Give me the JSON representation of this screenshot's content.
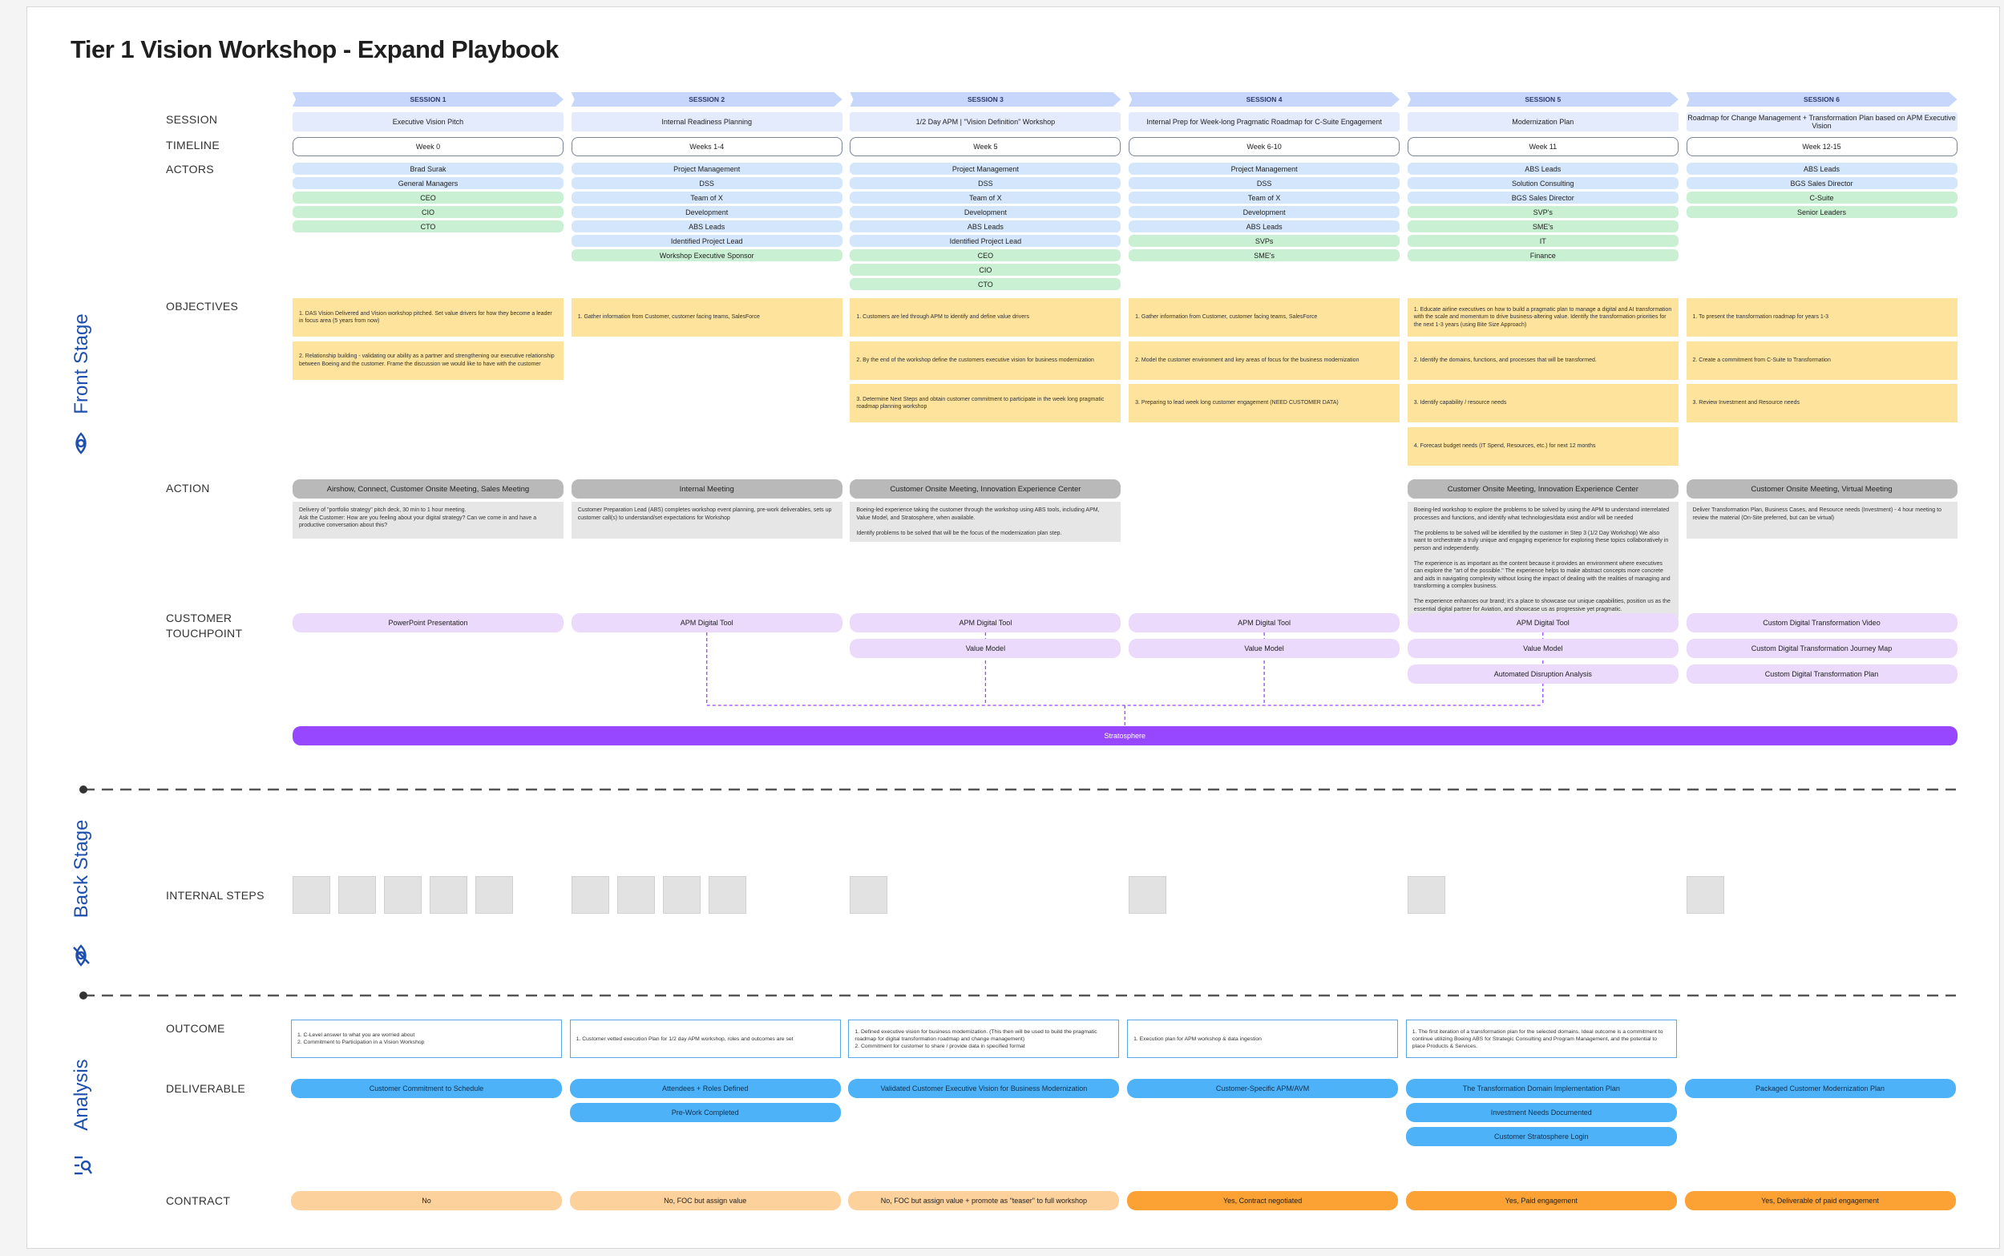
{
  "header": {
    "title": "Tier 1 Vision Workshop - Expand Playbook"
  },
  "stages": [
    "Front Stage",
    "Back Stage",
    "Analysis"
  ],
  "row_labels": {
    "session": "SESSION",
    "timeline": "TIMELINE",
    "actors": "ACTORS",
    "objectives": "OBJECTIVES",
    "action": "ACTION",
    "touchpoint": "CUSTOMER TOUCHPOINT",
    "internal_steps": "INTERNAL STEPS",
    "outcome": "OUTCOME",
    "deliverable": "DELIVERABLE",
    "contract": "CONTRACT"
  },
  "platform": "Stratosphere",
  "sessions": [
    {
      "header": "SESSION 1",
      "name": "Executive Vision Pitch",
      "timeline": "Week 0",
      "actors": [
        {
          "text": "Brad Surak",
          "color": "#d3e6fb"
        },
        {
          "text": "General Managers",
          "color": "#d3e6fb"
        },
        {
          "text": "CEO",
          "color": "#c9f0d3"
        },
        {
          "text": "CIO",
          "color": "#c9f0d3"
        },
        {
          "text": "CTO",
          "color": "#c9f0d3"
        }
      ],
      "objectives": [
        "1. DAS Vision Delivered and Vision workshop pitched.  Set value drivers for how they become a leader in focus area (5 years from now)",
        "2. Relationship building - validating our ability as a partner and strengthening our executive relationship between Boeing and the customer. Frame the discussion we would like to have with the customer"
      ],
      "action": {
        "title": "Airshow, Connect, Customer Onsite Meeting, Sales Meeting",
        "text": "Delivery of \"portfolio strategy\" pitch deck, 30 min to 1 hour meeting.\nAsk the Customer: How are you feeling about your digital strategy? Can we come in and have a productive conversation about this?"
      },
      "touchpoints": [
        "PowerPoint Presentation"
      ],
      "outcome": "1. C-Level answer to what you are worried about\n2. Commitment to Participation in a Vision Workshop",
      "deliverables": [
        "Customer Commitment to Schedule"
      ],
      "contract": {
        "text": "No",
        "color": "#fdd19b"
      }
    },
    {
      "header": "SESSION 2",
      "name": "Internal Readiness Planning",
      "timeline": "Weeks 1-4",
      "actors": [
        {
          "text": "Project Management",
          "color": "#d3e6fb"
        },
        {
          "text": "DSS",
          "color": "#d3e6fb"
        },
        {
          "text": "Team of X",
          "color": "#d3e6fb"
        },
        {
          "text": "Development",
          "color": "#d3e6fb"
        },
        {
          "text": "ABS Leads",
          "color": "#d3e6fb"
        },
        {
          "text": "Identified Project Lead",
          "color": "#d3e6fb"
        },
        {
          "text": "Workshop Executive Sponsor",
          "color": "#c9f0d3"
        }
      ],
      "objectives": [
        "1. Gather information from Customer, customer facing teams, SalesForce"
      ],
      "action": {
        "title": "Internal Meeting",
        "text": "Customer Preparation Lead (ABS) completes workshop event planning, pre-work deliverables, sets up customer call(s) to understand/set expectations for Workshop"
      },
      "touchpoints": [
        "APM Digital Tool"
      ],
      "outcome": "1. Customer vetted execution Plan for 1/2 day APM workshop, roles and outcomes are set",
      "deliverables": [
        "Attendees + Roles Defined",
        "Pre-Work Completed"
      ],
      "contract": {
        "text": "No, FOC but assign value",
        "color": "#fdd19b"
      }
    },
    {
      "header": "SESSION 3",
      "name": "1/2 Day APM | \"Vision Definition\" Workshop",
      "timeline": "Week 5",
      "actors": [
        {
          "text": "Project Management",
          "color": "#d3e6fb"
        },
        {
          "text": "DSS",
          "color": "#d3e6fb"
        },
        {
          "text": "Team of X",
          "color": "#d3e6fb"
        },
        {
          "text": "Development",
          "color": "#d3e6fb"
        },
        {
          "text": "ABS Leads",
          "color": "#d3e6fb"
        },
        {
          "text": "Identified Project Lead",
          "color": "#d3e6fb"
        },
        {
          "text": "CEO",
          "color": "#c9f0d3"
        },
        {
          "text": "CIO",
          "color": "#c9f0d3"
        },
        {
          "text": "CTO",
          "color": "#c9f0d3"
        }
      ],
      "objectives": [
        "1. Customers are led through APM to identify and define value drivers",
        "2. By the end of the workshop define the customers executive vision for business modernization",
        "3. Determine Next Steps and obtain customer commitment to participate in the week long pragmatic roadmap planning workshop"
      ],
      "action": {
        "title": "Customer Onsite Meeting,  Innovation Experience Center",
        "text": "Boeing-led experience taking the customer through the workshop using ABS tools, including APM, Value Model, and Stratosphere, when available.\n\nIdentify problems to be solved that will be the focus of the modernization plan step."
      },
      "touchpoints": [
        "APM Digital Tool",
        "Value Model"
      ],
      "outcome": "1. Defined executive vision for business modernization. (This then will be used to build the pragmatic roadmap for digital transformation roadmap and change management)\n2. Commitment for customer to share / provide data in specified format",
      "deliverables": [
        "Validated Customer Executive Vision for Business Modernization"
      ],
      "contract": {
        "text": "No, FOC but assign value + promote as \"teaser\" to full workshop",
        "color": "#fdd19b"
      }
    },
    {
      "header": "SESSION 4",
      "name": "Internal Prep for Week-long Pragmatic Roadmap for C-Suite Engagement",
      "timeline": "Week 6-10",
      "actors": [
        {
          "text": "Project Management",
          "color": "#d3e6fb"
        },
        {
          "text": "DSS",
          "color": "#d3e6fb"
        },
        {
          "text": "Team of X",
          "color": "#d3e6fb"
        },
        {
          "text": "Development",
          "color": "#d3e6fb"
        },
        {
          "text": "ABS Leads",
          "color": "#d3e6fb"
        },
        {
          "text": "SVPs",
          "color": "#c9f0d3"
        },
        {
          "text": "SME's",
          "color": "#c9f0d3"
        }
      ],
      "objectives": [
        "1. Gather information from Customer, customer facing teams, SalesForce",
        "2. Model the customer environment and key areas of focus for the business modernization",
        "3. Preparing to lead week long customer engagement (NEED CUSTOMER DATA)"
      ],
      "touchpoints": [
        "APM Digital Tool",
        "Value Model"
      ],
      "outcome": "1. Execution plan for APM workshop & data ingestion",
      "deliverables": [
        "Customer-Specific APM/AVM"
      ],
      "contract": {
        "text": "Yes, Contract negotiated",
        "color": "#fca133"
      }
    },
    {
      "header": "SESSION 5",
      "name": "Modernization Plan",
      "timeline": "Week 11",
      "actors": [
        {
          "text": "ABS Leads",
          "color": "#d3e6fb"
        },
        {
          "text": "Solution Consulting",
          "color": "#d3e6fb"
        },
        {
          "text": "BGS Sales Director",
          "color": "#d3e6fb"
        },
        {
          "text": "SVP's",
          "color": "#c9f0d3"
        },
        {
          "text": "SME's",
          "color": "#c9f0d3"
        },
        {
          "text": "IT",
          "color": "#c9f0d3"
        },
        {
          "text": "Finance",
          "color": "#c9f0d3"
        }
      ],
      "objectives": [
        "1. Educate airline executives on how to build a pragmatic plan to manage a digital and AI transformation with the scale and momentum to drive business-altering value. Identify the transformation priorities for the next 1-3 years (using Bite Size Approach)",
        "2. Identify the domains, functions, and processes that will be transformed.",
        "3. Identify capability / resource needs",
        "4. Forecast budget needs (IT Spend, Resources, etc.) for next 12 months"
      ],
      "action": {
        "title": "Customer Onsite Meeting, Innovation Experience Center",
        "text": "Boeing-led workshop to explore the problems to be solved by using the APM to understand interrelated processes and functions, and identify what technologies/data exist and/or will be needed\n\nThe problems to be solved will be identified by the customer in Step 3 (1/2 Day Workshop) We also want to orchestrate a truly unique and engaging experience for exploring these topics collaboratively in person and independently.\n\nThe experience is as important as the content because it provides an environment where executives can explore the \"art of the possible.\" The experience helps to make abstract concepts more concrete and aids in navigating complexity without losing the impact of dealing with the realities of managing and transforming a complex business.\n\nThe experience enhances our brand; it's a place to showcase our unique capabilities, position us as the essential digital partner for Aviation, and showcase us as progressive yet pragmatic."
      },
      "touchpoints": [
        "APM Digital Tool",
        "Value Model",
        "Automated Disruption Analysis"
      ],
      "outcome": "1. The first iteration of a transformation plan for the selected domains. Ideal outcome is a commitment to continue utilizing Boeing ABS for Strategic Consulting and Program Management, and the potential to place Products & Services.",
      "deliverables": [
        "The Transformation Domain Implementation Plan",
        "Investment Needs Documented",
        "Customer Stratosphere Login"
      ],
      "contract": {
        "text": "Yes, Paid engagement",
        "color": "#fca133"
      }
    },
    {
      "header": "SESSION 6",
      "name": "Roadmap for Change Management + Transformation Plan based on APM Executive Vision",
      "timeline": "Week 12-15",
      "actors": [
        {
          "text": "ABS Leads",
          "color": "#d3e6fb"
        },
        {
          "text": "BGS Sales Director",
          "color": "#d3e6fb"
        },
        {
          "text": "C-Suite",
          "color": "#c9f0d3"
        },
        {
          "text": "Senior Leaders",
          "color": "#c9f0d3"
        }
      ],
      "objectives": [
        "1. To present the transformation roadmap for years 1-3",
        "2. Create a commitment from C-Suite to Transformation",
        "3. Review Investment and Resource needs"
      ],
      "action": {
        "title": "Customer Onsite Meeting, Virtual Meeting",
        "text": "Deliver Transformation Plan, Business Cases, and Resource needs (Investment) - 4 hour meeting to review the material (On-Site preferred, but can be virtual)"
      },
      "touchpoints": [
        "Custom Digital Transformation Video",
        "Custom Digital Transformation Journey Map",
        "Custom Digital Transformation Plan"
      ],
      "deliverables": [
        "Packaged Customer Modernization Plan"
      ],
      "contract": {
        "text": "Yes, Deliverable of paid engagement",
        "color": "#fca133"
      }
    }
  ]
}
